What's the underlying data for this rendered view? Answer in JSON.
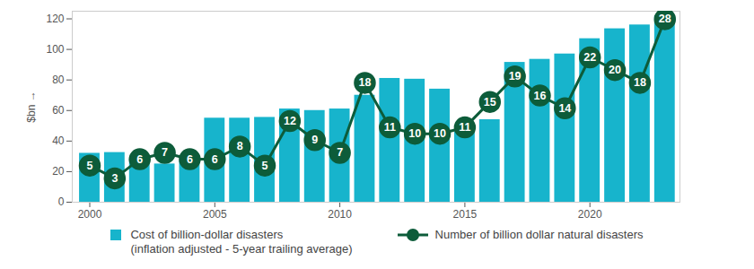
{
  "chart_data": {
    "type": "bar",
    "x": [
      2000,
      2001,
      2002,
      2003,
      2004,
      2005,
      2006,
      2007,
      2008,
      2009,
      2010,
      2011,
      2012,
      2013,
      2014,
      2015,
      2016,
      2017,
      2018,
      2019,
      2020,
      2021,
      2022,
      2023
    ],
    "xlim": [
      1999.3,
      2023.6
    ],
    "xticks": [
      2000,
      2005,
      2010,
      2015,
      2020
    ],
    "ylabel": "$bn",
    "ylim": [
      0,
      125
    ],
    "yticks": [
      0,
      20,
      40,
      60,
      80,
      100,
      120
    ],
    "y2lim": [
      -0.75,
      29.25
    ],
    "y2ticks": [],
    "grid": false,
    "legend": "bottom",
    "series": [
      {
        "name": "Cost of billion-dollar disasters\n(inflation adjusted - 5-year trailing average)",
        "type": "bar",
        "color": "#17b4cc",
        "values": [
          32,
          32.5,
          28,
          25,
          27,
          55,
          55,
          55.5,
          61,
          60,
          61,
          70,
          81,
          80.5,
          74,
          46,
          54,
          91.5,
          93.5,
          97,
          107,
          113.5,
          116,
          122
        ]
      },
      {
        "name": "Number of billion dollar natural disasters",
        "type": "line",
        "axis": "y2",
        "color": "#0d5c3a",
        "marker": "circle",
        "data_labels": true,
        "values": [
          5,
          3,
          6,
          7,
          6,
          6,
          8,
          5,
          12,
          9,
          7,
          18,
          11,
          10,
          10,
          11,
          15,
          19,
          16,
          14,
          22,
          20,
          18,
          28
        ]
      }
    ]
  }
}
